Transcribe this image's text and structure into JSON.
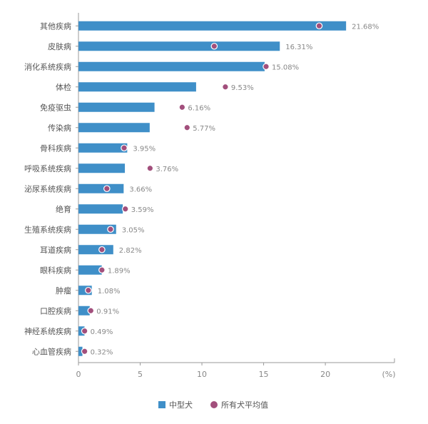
{
  "colors": {
    "bar": "#3f8fc8",
    "dot": "#a24f7c",
    "axis": "#999999",
    "text": "#555555"
  },
  "chart_data": {
    "type": "bar",
    "orientation": "horizontal",
    "categories": [
      "其他疾病",
      "皮肤病",
      "消化系统疾病",
      "体检",
      "免疫驱虫",
      "传染病",
      "骨科疾病",
      "呼吸系统疾病",
      "泌尿系统疾病",
      "绝育",
      "生殖系统疾病",
      "耳道疾病",
      "眼科疾病",
      "肿瘤",
      "口腔疾病",
      "神经系统疾病",
      "心血管疾病"
    ],
    "series": [
      {
        "name": "中型犬",
        "type": "bar",
        "values": [
          21.68,
          16.31,
          15.08,
          9.53,
          6.16,
          5.77,
          3.95,
          3.76,
          3.66,
          3.59,
          3.05,
          2.82,
          1.89,
          1.08,
          0.91,
          0.49,
          0.32
        ],
        "labels": [
          "21.68%",
          "16.31%",
          "15.08%",
          "9.53%",
          "6.16%",
          "5.77%",
          "3.95%",
          "3.76%",
          "3.66%",
          "3.59%",
          "3.05%",
          "2.82%",
          "1.89%",
          "1.08%",
          "0.91%",
          "0.49%",
          "0.32%"
        ]
      },
      {
        "name": "所有犬平均值",
        "type": "dot",
        "values": [
          19.5,
          11.0,
          15.2,
          11.9,
          8.4,
          8.8,
          3.7,
          5.8,
          2.3,
          3.8,
          2.6,
          1.9,
          1.9,
          0.8,
          1.0,
          0.5,
          0.5
        ]
      }
    ],
    "x_ticks": [
      0,
      5,
      10,
      15,
      20
    ],
    "x_unit": "(%)",
    "xlim": [
      0,
      25.6
    ],
    "legend_position": "bottom-center"
  }
}
